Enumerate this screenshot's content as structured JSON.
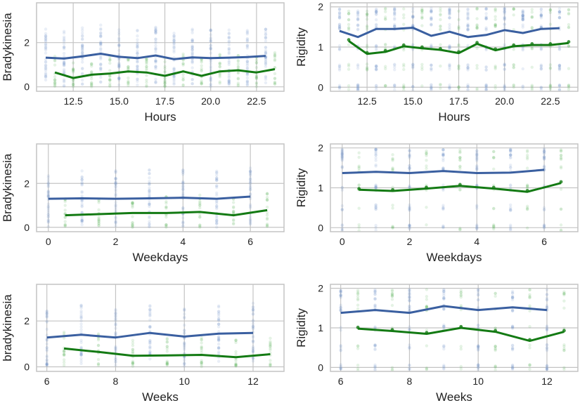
{
  "colors": {
    "blue": "#3a5fa0",
    "green": "#137a13",
    "grid": "#c4c4c4",
    "frame": "#c4c4c4",
    "blue_points": "#6c8fc8",
    "green_points": "#45a845"
  },
  "chart_data": [
    {
      "id": "brady-hours",
      "type": "line",
      "xlabel": "Hours",
      "ylabel": "Bradykinesia",
      "xlim": [
        10.5,
        24.0
      ],
      "ylim": [
        -0.2,
        3.8
      ],
      "xticks": [
        12.5,
        15.0,
        17.5,
        20.0,
        22.5
      ],
      "xtick_labels": [
        "12.5",
        "15.0",
        "17.5",
        "20.0",
        "22.5"
      ],
      "yticks": [
        0,
        2
      ],
      "ytick_labels": [
        "0",
        "2"
      ],
      "series": [
        {
          "name": "blue",
          "x": [
            11.0,
            12.0,
            13.0,
            14.0,
            15.0,
            16.0,
            17.0,
            18.0,
            19.0,
            20.0,
            21.0,
            22.0,
            23.0
          ],
          "values": [
            1.32,
            1.28,
            1.38,
            1.5,
            1.36,
            1.3,
            1.42,
            1.25,
            1.33,
            1.3,
            1.32,
            1.35,
            1.4
          ]
        },
        {
          "name": "green",
          "x": [
            11.5,
            12.5,
            13.5,
            14.5,
            15.5,
            16.5,
            17.5,
            18.5,
            19.5,
            20.5,
            21.5,
            22.5,
            23.5
          ],
          "values": [
            0.65,
            0.4,
            0.55,
            0.6,
            0.7,
            0.65,
            0.5,
            0.7,
            0.5,
            0.7,
            0.75,
            0.65,
            0.8
          ]
        }
      ]
    },
    {
      "id": "rigidity-hours",
      "type": "line",
      "xlabel": "Hours",
      "ylabel": "Rigidity",
      "xlim": [
        10.5,
        24.0
      ],
      "ylim": [
        -0.1,
        2.1
      ],
      "xticks": [
        12.5,
        15.0,
        17.5,
        20.0,
        22.5
      ],
      "xtick_labels": [
        "12.5",
        "15.0",
        "17.5",
        "20.0",
        "22.5"
      ],
      "yticks": [
        0,
        1,
        2
      ],
      "ytick_labels": [
        "0",
        "1",
        "2"
      ],
      "series": [
        {
          "name": "blue",
          "x": [
            11.0,
            12.0,
            13.0,
            14.0,
            15.0,
            16.0,
            17.0,
            18.0,
            19.0,
            20.0,
            21.0,
            22.0,
            23.0
          ],
          "values": [
            1.4,
            1.25,
            1.45,
            1.45,
            1.48,
            1.28,
            1.38,
            1.25,
            1.3,
            1.42,
            1.35,
            1.45,
            1.47
          ]
        },
        {
          "name": "green",
          "x": [
            11.5,
            12.5,
            13.5,
            14.5,
            15.5,
            16.5,
            17.5,
            18.5,
            19.5,
            20.5,
            21.5,
            22.5,
            23.5
          ],
          "values": [
            1.15,
            0.83,
            0.88,
            1.02,
            0.97,
            0.93,
            0.85,
            1.08,
            0.92,
            1.02,
            1.05,
            1.05,
            1.1
          ]
        }
      ]
    },
    {
      "id": "brady-weekdays",
      "type": "line",
      "xlabel": "Weekdays",
      "ylabel": "Bradykinesia",
      "xlim": [
        -0.35,
        7.0
      ],
      "ylim": [
        -0.2,
        3.8
      ],
      "xticks": [
        0,
        2,
        4,
        6
      ],
      "xtick_labels": [
        "0",
        "2",
        "4",
        "6"
      ],
      "yticks": [
        0,
        2
      ],
      "ytick_labels": [
        "0",
        "2"
      ],
      "series": [
        {
          "name": "blue",
          "x": [
            0,
            1,
            2,
            3,
            4,
            5,
            6
          ],
          "values": [
            1.3,
            1.32,
            1.3,
            1.32,
            1.35,
            1.3,
            1.4
          ]
        },
        {
          "name": "green",
          "x": [
            0.5,
            1.5,
            2.5,
            3.5,
            4.5,
            5.5,
            6.5
          ],
          "values": [
            0.55,
            0.6,
            0.65,
            0.65,
            0.7,
            0.55,
            0.78
          ]
        }
      ]
    },
    {
      "id": "rigidity-weekdays",
      "type": "line",
      "xlabel": "Weekdays",
      "ylabel": "Rigidity",
      "xlim": [
        -0.35,
        7.0
      ],
      "ylim": [
        -0.1,
        2.1
      ],
      "xticks": [
        0,
        2,
        4,
        6
      ],
      "xtick_labels": [
        "0",
        "2",
        "4",
        "6"
      ],
      "yticks": [
        0,
        1,
        2
      ],
      "ytick_labels": [
        "0",
        "1",
        "2"
      ],
      "series": [
        {
          "name": "blue",
          "x": [
            0,
            1,
            2,
            3,
            4,
            5,
            6
          ],
          "values": [
            1.37,
            1.4,
            1.37,
            1.42,
            1.37,
            1.38,
            1.45
          ]
        },
        {
          "name": "green",
          "x": [
            0.5,
            1.5,
            2.5,
            3.5,
            4.5,
            5.5,
            6.5
          ],
          "values": [
            0.95,
            0.92,
            0.98,
            1.05,
            0.98,
            0.9,
            1.12
          ]
        }
      ]
    },
    {
      "id": "brady-weeks",
      "type": "line",
      "xlabel": "Weeks",
      "ylabel": "bradykinesia",
      "xlim": [
        5.7,
        12.9
      ],
      "ylim": [
        -0.2,
        3.6
      ],
      "xticks": [
        6,
        8,
        10,
        12
      ],
      "xtick_labels": [
        "6",
        "8",
        "10",
        "12"
      ],
      "yticks": [
        0,
        2
      ],
      "ytick_labels": [
        "0",
        "2"
      ],
      "series": [
        {
          "name": "blue",
          "x": [
            6,
            7,
            8,
            9,
            10,
            11,
            12
          ],
          "values": [
            1.28,
            1.4,
            1.28,
            1.48,
            1.32,
            1.45,
            1.48
          ]
        },
        {
          "name": "green",
          "x": [
            6.5,
            7.5,
            8.5,
            9.5,
            10.5,
            11.5,
            12.5
          ],
          "values": [
            0.8,
            0.65,
            0.48,
            0.5,
            0.52,
            0.42,
            0.55
          ]
        }
      ]
    },
    {
      "id": "rigidity-weeks",
      "type": "line",
      "xlabel": "Weeks",
      "ylabel": "Rigidity",
      "xlim": [
        5.7,
        12.9
      ],
      "ylim": [
        -0.1,
        2.1
      ],
      "xticks": [
        6,
        8,
        10,
        12
      ],
      "xtick_labels": [
        "6",
        "8",
        "10",
        "12"
      ],
      "yticks": [
        0,
        1,
        2
      ],
      "ytick_labels": [
        "0",
        "1",
        "2"
      ],
      "series": [
        {
          "name": "blue",
          "x": [
            6,
            7,
            8,
            9,
            10,
            11,
            12
          ],
          "values": [
            1.38,
            1.45,
            1.38,
            1.55,
            1.45,
            1.52,
            1.45
          ]
        },
        {
          "name": "green",
          "x": [
            6.5,
            7.5,
            8.5,
            9.5,
            10.5,
            11.5,
            12.5
          ],
          "values": [
            0.98,
            0.92,
            0.85,
            1.0,
            0.9,
            0.67,
            0.9
          ]
        }
      ]
    }
  ]
}
